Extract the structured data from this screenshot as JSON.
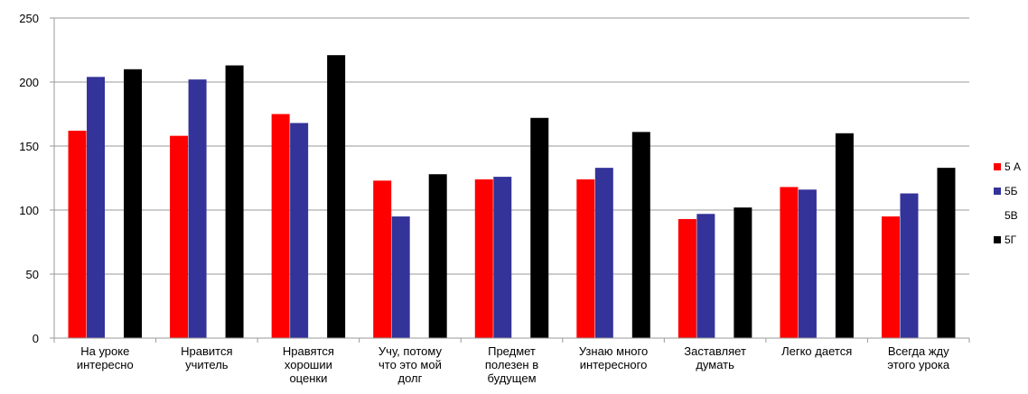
{
  "chart_data": {
    "type": "bar",
    "categories": [
      [
        "На уроке",
        "интересно"
      ],
      [
        "Нравится",
        "учитель"
      ],
      [
        "Нравятся",
        "хорошии",
        "оценки"
      ],
      [
        "Учу, потому",
        "что это мой",
        "долг"
      ],
      [
        "Предмет",
        "полезен в",
        "будущем"
      ],
      [
        "Узнаю много",
        "интересного"
      ],
      [
        "Заставляет",
        "думать"
      ],
      [
        "Легко дается"
      ],
      [
        "Всегда жду",
        "этого урока"
      ]
    ],
    "series": [
      {
        "name": "5 А",
        "color": "#ff0000",
        "values": [
          162,
          158,
          175,
          123,
          124,
          124,
          93,
          118,
          95
        ]
      },
      {
        "name": "5Б",
        "color": "#333399",
        "values": [
          204,
          202,
          168,
          95,
          126,
          133,
          97,
          116,
          113
        ]
      },
      {
        "name": "5В",
        "color": "#ffffff",
        "values": [
          0,
          0,
          0,
          0,
          0,
          0,
          0,
          0,
          0
        ]
      },
      {
        "name": "5Г",
        "color": "#000000",
        "values": [
          210,
          213,
          221,
          128,
          172,
          161,
          102,
          160,
          133
        ]
      }
    ],
    "yticks": [
      0,
      50,
      100,
      150,
      200,
      250
    ],
    "ylim": [
      0,
      250
    ],
    "grid": true,
    "legend_position": "right",
    "title": "",
    "xlabel": "",
    "ylabel": ""
  }
}
